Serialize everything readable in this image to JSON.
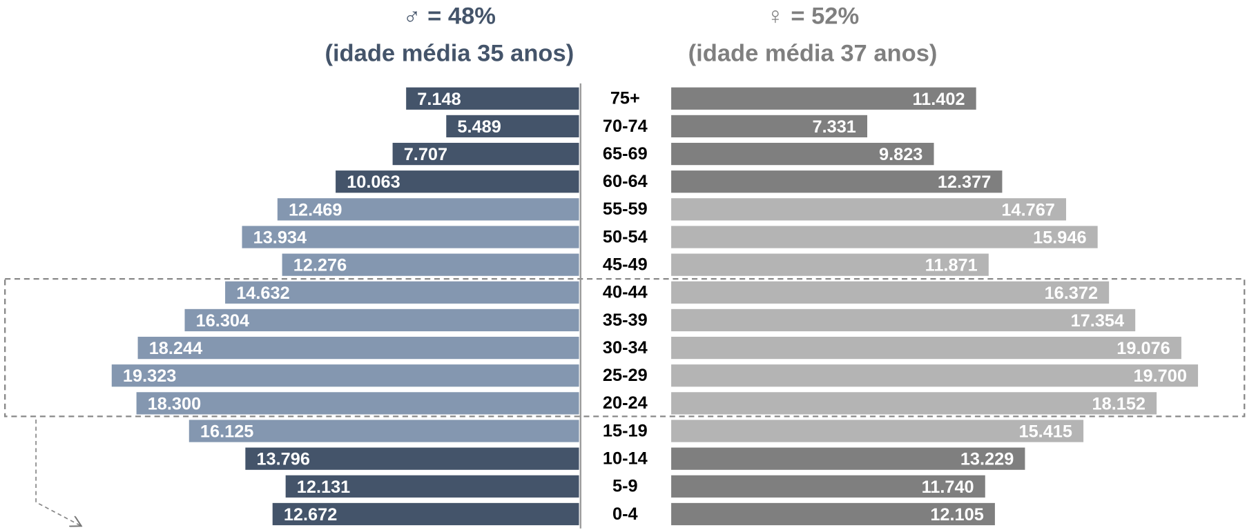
{
  "chart_data": {
    "type": "pyramid",
    "categories": [
      "75+",
      "70-74",
      "65-69",
      "60-64",
      "55-59",
      "50-54",
      "45-49",
      "40-44",
      "35-39",
      "30-34",
      "25-29",
      "20-24",
      "15-19",
      "10-14",
      "5-9",
      "0-4"
    ],
    "series": [
      {
        "name": "♂ = 48%",
        "subtitle": "(idade média 35 anos)",
        "color": "#44546a",
        "side": "left",
        "xlim": [
          0,
          24000
        ],
        "values": [
          7148,
          5489,
          7707,
          10063,
          12469,
          13934,
          12276,
          14632,
          16304,
          18244,
          19323,
          18300,
          16125,
          13796,
          12131,
          12672
        ],
        "value_labels": [
          "7.148",
          "5.489",
          "7.707",
          "10.063",
          "12.469",
          "13.934",
          "12.276",
          "14.632",
          "16.304",
          "18.244",
          "19.323",
          "18.300",
          "16.125",
          "13.796",
          "12.131",
          "12.672"
        ],
        "colors": [
          "#44546a",
          "#44546a",
          "#44546a",
          "#44546a",
          "#8497b0",
          "#8497b0",
          "#8497b0",
          "#8497b0",
          "#8497b0",
          "#8497b0",
          "#8497b0",
          "#8497b0",
          "#8497b0",
          "#44546a",
          "#44546a",
          "#44546a"
        ]
      },
      {
        "name": "♀ = 52%",
        "subtitle": "(idade média 37 anos)",
        "color": "#7f7f7f",
        "side": "right",
        "xlim": [
          0,
          22000
        ],
        "values": [
          11402,
          7331,
          9823,
          12377,
          14767,
          15946,
          11871,
          16372,
          17354,
          19076,
          19700,
          18152,
          15415,
          13229,
          11740,
          12105
        ],
        "value_labels": [
          "11.402",
          "7.331",
          "9.823",
          "12.377",
          "14.767",
          "15.946",
          "11.871",
          "16.372",
          "17.354",
          "19.076",
          "19.700",
          "18.152",
          "15.415",
          "13.229",
          "11.740",
          "12.105"
        ],
        "colors": [
          "#7f7f7f",
          "#7f7f7f",
          "#7f7f7f",
          "#7f7f7f",
          "#b4b4b4",
          "#b4b4b4",
          "#b4b4b4",
          "#b4b4b4",
          "#b4b4b4",
          "#b4b4b4",
          "#b4b4b4",
          "#b4b4b4",
          "#b4b4b4",
          "#7f7f7f",
          "#7f7f7f",
          "#7f7f7f"
        ]
      }
    ]
  }
}
